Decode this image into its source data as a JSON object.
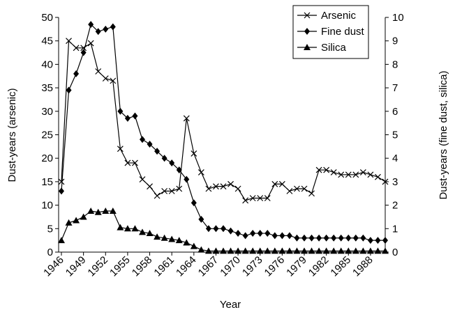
{
  "chart_data": {
    "type": "line",
    "x_label": "Year",
    "y_label": "Dust-years (arsenic)",
    "y2_label": "Dust-years (fine dust, silica)",
    "x": [
      1946,
      1947,
      1948,
      1949,
      1950,
      1951,
      1952,
      1953,
      1954,
      1955,
      1956,
      1957,
      1958,
      1959,
      1960,
      1961,
      1962,
      1963,
      1964,
      1965,
      1966,
      1967,
      1968,
      1969,
      1970,
      1971,
      1972,
      1973,
      1974,
      1975,
      1976,
      1977,
      1978,
      1979,
      1980,
      1981,
      1982,
      1983,
      1984,
      1985,
      1986,
      1987,
      1988,
      1989,
      1990
    ],
    "xlim": [
      1946,
      1990
    ],
    "xticks": [
      1946,
      1949,
      1952,
      1955,
      1958,
      1961,
      1964,
      1967,
      1970,
      1973,
      1976,
      1979,
      1982,
      1985,
      1988
    ],
    "ylim": [
      0,
      50
    ],
    "yticks": [
      0,
      5,
      10,
      15,
      20,
      25,
      30,
      35,
      40,
      45,
      50
    ],
    "y2lim": [
      0,
      10
    ],
    "y2ticks": [
      0,
      1,
      2,
      3,
      4,
      5,
      6,
      7,
      8,
      9,
      10
    ],
    "legend": "upper right",
    "series": [
      {
        "name": "Arsenic",
        "color": "#000000",
        "marker": "x",
        "values": [
          15,
          45,
          43.5,
          43.5,
          44.5,
          38.5,
          37,
          36.5,
          22,
          19,
          19,
          15.5,
          14,
          12,
          13,
          13,
          13.5,
          28.5,
          21,
          17,
          13.5,
          14,
          14,
          14.5,
          13.5,
          11,
          11.5,
          11.5,
          11.5,
          14.5,
          14.5,
          13,
          13.5,
          13.5,
          12.5,
          17.5,
          17.5,
          17,
          16.5,
          16.5,
          16.5,
          17,
          16.5,
          16,
          15
        ]
      },
      {
        "name": "Fine dust",
        "color": "#000000",
        "marker": "diamond",
        "axis": "y2",
        "values": [
          2.6,
          6.9,
          7.6,
          8.5,
          9.7,
          9.4,
          9.5,
          9.6,
          6.0,
          5.7,
          5.8,
          4.8,
          4.6,
          4.3,
          4.0,
          3.8,
          3.5,
          3.1,
          2.1,
          1.4,
          1.0,
          1.0,
          1.0,
          0.9,
          0.8,
          0.7,
          0.8,
          0.8,
          0.8,
          0.7,
          0.7,
          0.7,
          0.6,
          0.6,
          0.6,
          0.6,
          0.6,
          0.6,
          0.6,
          0.6,
          0.6,
          0.6,
          0.5,
          0.5,
          0.5
        ]
      },
      {
        "name": "Silica",
        "color": "#000000",
        "marker": "triangle",
        "axis": "y2",
        "values": [
          0.5,
          1.25,
          1.35,
          1.5,
          1.75,
          1.7,
          1.75,
          1.75,
          1.05,
          1.0,
          1.0,
          0.85,
          0.8,
          0.65,
          0.6,
          0.55,
          0.5,
          0.4,
          0.25,
          0.1,
          0.05,
          0.05,
          0.05,
          0.05,
          0.05,
          0.05,
          0.05,
          0.05,
          0.05,
          0.05,
          0.05,
          0.05,
          0.05,
          0.05,
          0.05,
          0.05,
          0.05,
          0.05,
          0.05,
          0.05,
          0.05,
          0.05,
          0.05,
          0.05,
          0.05
        ]
      }
    ]
  }
}
